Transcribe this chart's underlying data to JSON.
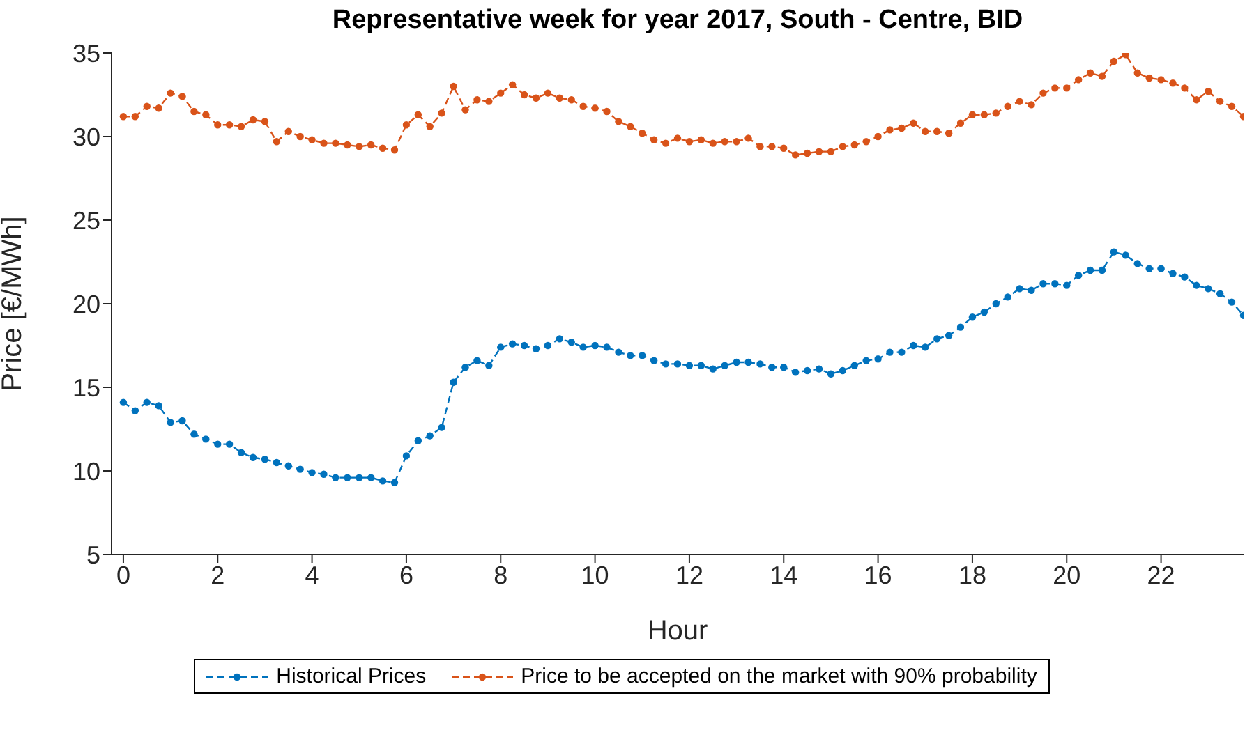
{
  "chart_data": {
    "type": "line",
    "title": "Representative week for year 2017, South - Centre, BID",
    "xlabel": "Hour",
    "ylabel": "Price [€/MWh]",
    "x": [
      0,
      0.25,
      0.5,
      0.75,
      1,
      1.25,
      1.5,
      1.75,
      2,
      2.25,
      2.5,
      2.75,
      3,
      3.25,
      3.5,
      3.75,
      4,
      4.25,
      4.5,
      4.75,
      5,
      5.25,
      5.5,
      5.75,
      6,
      6.25,
      6.5,
      6.75,
      7,
      7.25,
      7.5,
      7.75,
      8,
      8.25,
      8.5,
      8.75,
      9,
      9.25,
      9.5,
      9.75,
      10,
      10.25,
      10.5,
      10.75,
      11,
      11.25,
      11.5,
      11.75,
      12,
      12.25,
      12.5,
      12.75,
      13,
      13.25,
      13.5,
      13.75,
      14,
      14.25,
      14.5,
      14.75,
      15,
      15.25,
      15.5,
      15.75,
      16,
      16.25,
      16.5,
      16.75,
      17,
      17.25,
      17.5,
      17.75,
      18,
      18.25,
      18.5,
      18.75,
      19,
      19.25,
      19.5,
      19.75,
      20,
      20.25,
      20.5,
      20.75,
      21,
      21.25,
      21.5,
      21.75,
      22,
      22.25,
      22.5,
      22.75,
      23,
      23.25,
      23.5,
      23.75
    ],
    "series": [
      {
        "name": "Historical Prices",
        "color": "#0072bd",
        "values": [
          14.1,
          13.6,
          14.1,
          13.9,
          12.9,
          13.0,
          12.2,
          11.9,
          11.6,
          11.6,
          11.1,
          10.8,
          10.7,
          10.5,
          10.3,
          10.1,
          9.9,
          9.8,
          9.6,
          9.6,
          9.6,
          9.6,
          9.4,
          9.3,
          10.9,
          11.8,
          12.1,
          12.6,
          15.3,
          16.2,
          16.6,
          16.3,
          17.4,
          17.6,
          17.5,
          17.3,
          17.5,
          17.9,
          17.7,
          17.4,
          17.5,
          17.4,
          17.1,
          16.9,
          16.9,
          16.6,
          16.4,
          16.4,
          16.3,
          16.3,
          16.1,
          16.3,
          16.5,
          16.5,
          16.4,
          16.2,
          16.2,
          15.9,
          16.0,
          16.1,
          15.8,
          16.0,
          16.3,
          16.6,
          16.7,
          17.1,
          17.1,
          17.5,
          17.4,
          17.9,
          18.1,
          18.6,
          19.2,
          19.5,
          20.0,
          20.4,
          20.9,
          20.8,
          21.2,
          21.2,
          21.1,
          21.7,
          22.0,
          22.0,
          23.1,
          22.9,
          22.4,
          22.1,
          22.1,
          21.8,
          21.6,
          21.1,
          20.9,
          20.6,
          20.1,
          19.3
        ]
      },
      {
        "name": "Price to be accepted on the market with 90% probability",
        "color": "#d95319",
        "values": [
          31.2,
          31.2,
          31.8,
          31.7,
          32.6,
          32.4,
          31.5,
          31.3,
          30.7,
          30.7,
          30.6,
          31.0,
          30.9,
          29.7,
          30.3,
          30.0,
          29.8,
          29.6,
          29.6,
          29.5,
          29.4,
          29.5,
          29.3,
          29.2,
          30.7,
          31.3,
          30.6,
          31.4,
          33.0,
          31.6,
          32.2,
          32.1,
          32.6,
          33.1,
          32.5,
          32.3,
          32.6,
          32.3,
          32.2,
          31.8,
          31.7,
          31.5,
          30.9,
          30.6,
          30.2,
          29.8,
          29.6,
          29.9,
          29.7,
          29.8,
          29.6,
          29.7,
          29.7,
          29.9,
          29.4,
          29.4,
          29.3,
          28.9,
          29.0,
          29.1,
          29.1,
          29.4,
          29.5,
          29.7,
          30.0,
          30.4,
          30.5,
          30.8,
          30.3,
          30.3,
          30.2,
          30.8,
          31.3,
          31.3,
          31.4,
          31.8,
          32.1,
          31.9,
          32.6,
          32.9,
          32.9,
          33.4,
          33.8,
          33.6,
          34.5,
          34.9,
          33.8,
          33.5,
          33.4,
          33.2,
          32.9,
          32.2,
          32.7,
          32.1,
          31.8,
          31.2
        ]
      }
    ],
    "xlim": [
      -0.25,
      23.75
    ],
    "xticks": [
      0,
      2,
      4,
      6,
      8,
      10,
      12,
      14,
      16,
      18,
      20,
      22
    ],
    "ylim": [
      5,
      35
    ],
    "yticks": [
      5,
      10,
      15,
      20,
      25,
      30,
      35
    ],
    "marker": "circle",
    "line_style": "dashed",
    "legend": "bottom",
    "grid": false
  }
}
